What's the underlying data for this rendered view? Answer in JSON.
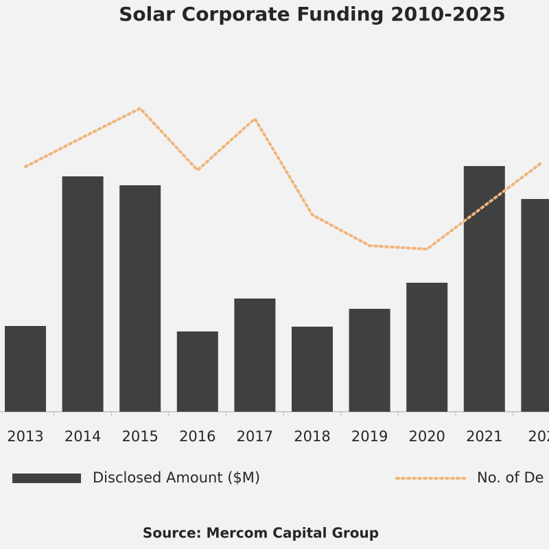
{
  "chart_data": {
    "type": "bar-line",
    "title": "Solar Corporate Funding 2010-2025",
    "categories": [
      "2013",
      "2014",
      "2015",
      "2016",
      "2017",
      "2018",
      "2019",
      "2020",
      "2021",
      "202"
    ],
    "series": [
      {
        "name": "Disclosed Amount ($M)",
        "type": "bar",
        "color": "#404040",
        "values": [
          125,
          343,
          330,
          117,
          165,
          124,
          150,
          188,
          358,
          310
        ]
      },
      {
        "name": "No. of De",
        "type": "line",
        "axis": "y2",
        "color": "#f0b47a",
        "values": [
          357,
          400,
          442,
          352,
          427,
          287,
          242,
          237,
          300,
          363
        ]
      }
    ],
    "ylim": [
      0,
      500
    ],
    "y2lim": [
      0,
      500
    ],
    "source": "Source: Mercom Capital Group"
  }
}
